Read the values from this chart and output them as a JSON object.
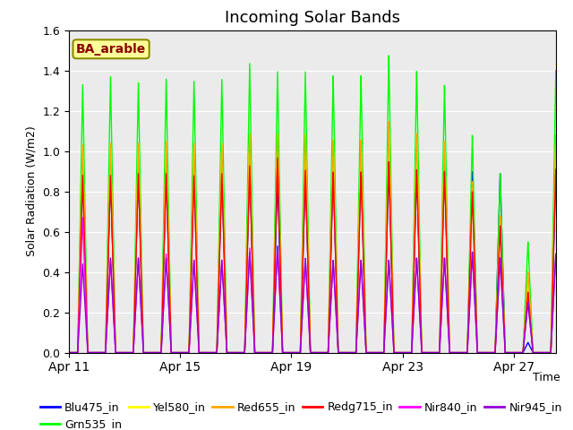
{
  "title": "Incoming Solar Bands",
  "xlabel": "Time",
  "ylabel": "Solar Radiation (W/m2)",
  "annotation_text": "BA_arable",
  "annotation_color": "#8B0000",
  "annotation_bg": "#FFFF99",
  "annotation_edge": "#8B8B00",
  "ylim": [
    0,
    1.6
  ],
  "num_days": 18,
  "x_ticks_labels": [
    "Apr 11",
    "Apr 15",
    "Apr 19",
    "Apr 23",
    "Apr 27"
  ],
  "x_ticks_pos": [
    0,
    4,
    8,
    12,
    16
  ],
  "series": [
    {
      "label": "Blu475_in",
      "color": "#0000FF",
      "lw": 1.0
    },
    {
      "label": "Grn535_in",
      "color": "#00FF00",
      "lw": 1.0
    },
    {
      "label": "Yel580_in",
      "color": "#FFFF00",
      "lw": 1.0
    },
    {
      "label": "Red655_in",
      "color": "#FFA500",
      "lw": 1.0
    },
    {
      "label": "Redg715_in",
      "color": "#FF0000",
      "lw": 1.0
    },
    {
      "label": "Nir840_in",
      "color": "#FF00FF",
      "lw": 1.0
    },
    {
      "label": "Nir945_in",
      "color": "#9400D3",
      "lw": 1.0
    }
  ],
  "bg_color": "#EBEBEB",
  "fig_bg": "#FFFFFF",
  "peak_amplitudes": {
    "Blu475_in": [
      0.9,
      0.88,
      0.9,
      0.91,
      0.92,
      0.9,
      0.95,
      0.88,
      0.9,
      0.91,
      0.92,
      0.94,
      0.91,
      0.93,
      0.9,
      0.89,
      0.05,
      0.9
    ],
    "Grn535_in": [
      1.33,
      1.37,
      1.34,
      1.36,
      1.35,
      1.36,
      1.44,
      1.4,
      1.4,
      1.38,
      1.38,
      1.48,
      1.4,
      1.33,
      1.08,
      0.89,
      0.55,
      1.4
    ],
    "Yel580_in": [
      1.03,
      1.04,
      1.04,
      1.05,
      1.04,
      1.04,
      1.09,
      1.09,
      1.09,
      1.06,
      1.06,
      1.15,
      1.09,
      1.05,
      0.82,
      0.67,
      0.35,
      1.08
    ],
    "Red655_in": [
      1.03,
      1.04,
      1.04,
      1.05,
      1.04,
      1.04,
      1.09,
      1.09,
      1.09,
      1.06,
      1.06,
      1.15,
      1.09,
      1.05,
      0.85,
      0.68,
      0.4,
      1.08
    ],
    "Redg715_in": [
      0.88,
      0.88,
      0.89,
      0.89,
      0.88,
      0.89,
      0.93,
      0.97,
      0.91,
      0.9,
      0.9,
      0.95,
      0.91,
      0.9,
      0.8,
      0.63,
      0.3,
      0.91
    ],
    "Nir840_in": [
      0.67,
      0.46,
      0.47,
      0.49,
      0.46,
      0.46,
      0.52,
      0.53,
      0.47,
      0.46,
      0.46,
      0.46,
      0.47,
      0.47,
      0.5,
      0.47,
      0.25,
      0.49
    ],
    "Nir945_in": [
      0.44,
      0.47,
      0.47,
      0.47,
      0.46,
      0.46,
      0.5,
      0.53,
      0.47,
      0.46,
      0.46,
      0.46,
      0.47,
      0.47,
      0.5,
      0.47,
      0.25,
      0.49
    ]
  },
  "legend_ncol": 6,
  "legend_fontsize": 9
}
